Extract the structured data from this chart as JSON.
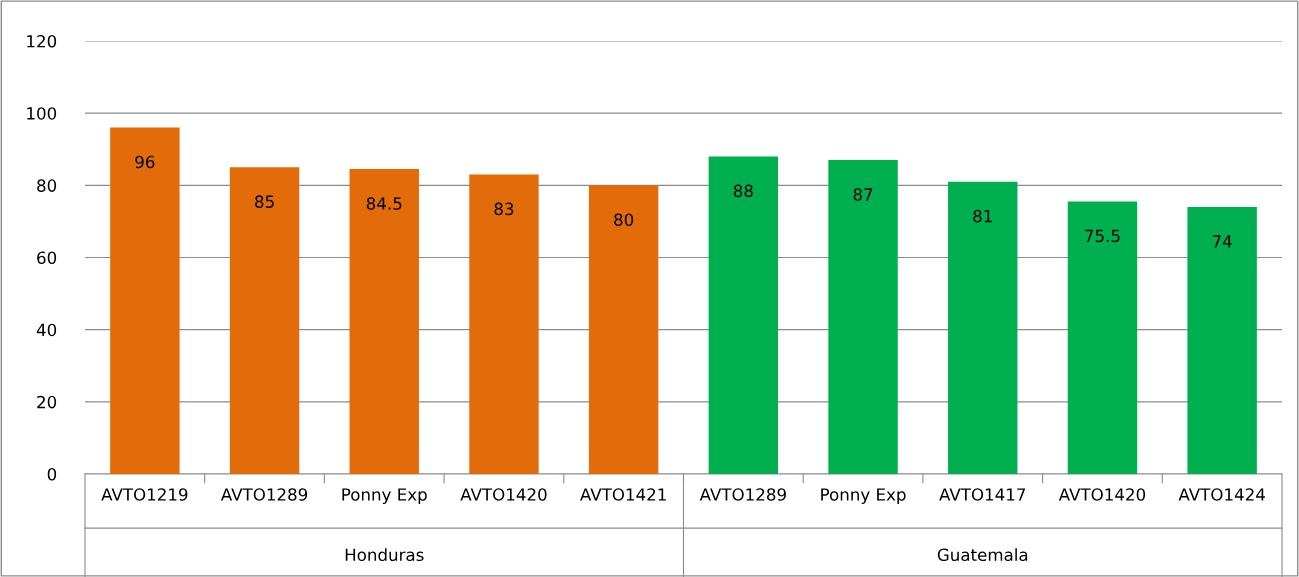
{
  "chart_data": {
    "type": "bar",
    "categories": [
      "AVTO1219",
      "AVTO1289",
      "Ponny Exp",
      "AVTO1420",
      "AVTO1421",
      "AVTO1289",
      "Ponny Exp",
      "AVTO1417",
      "AVTO1420",
      "AVTO1424"
    ],
    "values": [
      96,
      85,
      84.5,
      83,
      80,
      88,
      87,
      81,
      75.5,
      74
    ],
    "colors": [
      "#e36c0a",
      "#e36c0a",
      "#e36c0a",
      "#e36c0a",
      "#e36c0a",
      "#00b050",
      "#00b050",
      "#00b050",
      "#00b050",
      "#00b050"
    ],
    "annotations": [
      "Honduras",
      "Guatemala"
    ],
    "ylim": [
      0,
      120
    ],
    "yticks": [
      0,
      20,
      40,
      60,
      80,
      100,
      120
    ],
    "grid": "y",
    "data_labels": true
  }
}
